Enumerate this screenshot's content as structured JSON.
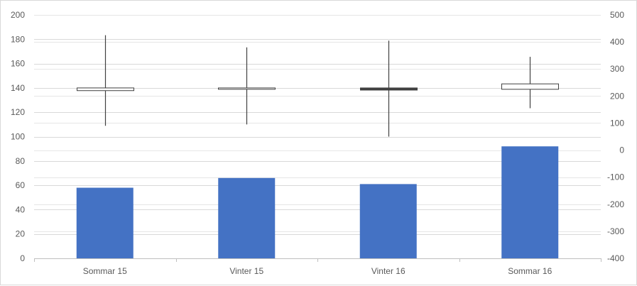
{
  "chart_data": {
    "type": "bar",
    "categories": [
      "Sommar 15",
      "Vinter 15",
      "Vinter 16",
      "Sommar 16"
    ],
    "series": [
      {
        "axis": "left",
        "mark": "bar",
        "values": [
          58,
          66,
          61,
          92
        ],
        "color": "#4472c4"
      },
      {
        "axis": "right",
        "mark": "candlestick",
        "color": "#404040",
        "up_fill": "#ffffff",
        "down_fill": "#404040",
        "points": [
          {
            "open": 220,
            "close": 230,
            "high": 425,
            "low": 90
          },
          {
            "open": 225,
            "close": 230,
            "high": 380,
            "low": 95
          },
          {
            "open": 230,
            "close": 222,
            "high": 405,
            "low": 50
          },
          {
            "open": 225,
            "close": 245,
            "high": 345,
            "low": 155
          }
        ]
      }
    ],
    "y_left": {
      "ylim": [
        0,
        200
      ],
      "ticks": [
        "0",
        "20",
        "40",
        "60",
        "80",
        "100",
        "120",
        "140",
        "160",
        "180",
        "200"
      ]
    },
    "y_right": {
      "ylim": [
        -400,
        500
      ],
      "ticks": [
        "-400",
        "-300",
        "-200",
        "-100",
        "0",
        "100",
        "200",
        "300",
        "400",
        "500"
      ]
    },
    "grid": true,
    "title": "",
    "xlabel": "",
    "ylabel": ""
  }
}
